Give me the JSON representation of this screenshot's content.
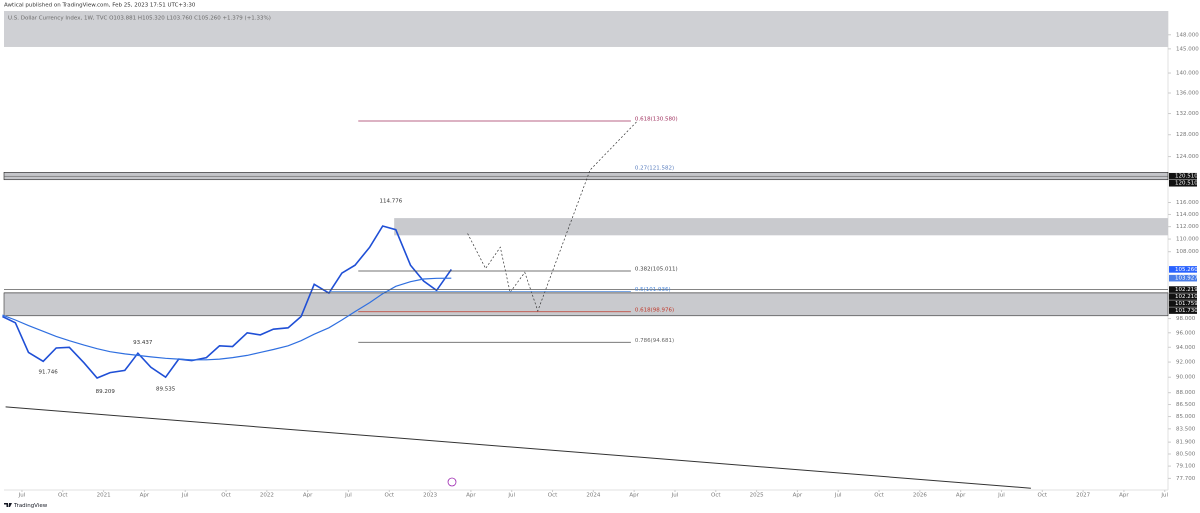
{
  "header": "Awtical published on TradingView.com, Feb 25, 2023 17:51 UTC+3:30",
  "footer": "TradingView",
  "chart_data": {
    "type": "line",
    "legend_text": "U.S. Dollar Currency Index, 1W, TVC O103.881 H105.320 L103.760 C105.260 +1.379 (+1.33%)",
    "log_scale": true,
    "grid": false,
    "xlim": [
      2020.39,
      2027.52
    ],
    "ylim": [
      76.4,
      153.2
    ],
    "xticks": [
      {
        "value": 2020.5,
        "label": "Jul"
      },
      {
        "value": 2020.75,
        "label": "Oct"
      },
      2021,
      {
        "value": 2021.25,
        "label": "Apr"
      },
      {
        "value": 2021.5,
        "label": "Jul"
      },
      {
        "value": 2021.75,
        "label": "Oct"
      },
      2022,
      {
        "value": 2022.25,
        "label": "Apr"
      },
      {
        "value": 2022.5,
        "label": "Jul"
      },
      {
        "value": 2022.75,
        "label": "Oct"
      },
      2023,
      {
        "value": 2023.25,
        "label": "Apr"
      },
      {
        "value": 2023.5,
        "label": "Jul"
      },
      {
        "value": 2023.75,
        "label": "Oct"
      },
      2024,
      {
        "value": 2024.25,
        "label": "Apr"
      },
      {
        "value": 2024.5,
        "label": "Jul"
      },
      {
        "value": 2024.75,
        "label": "Oct"
      },
      2025,
      {
        "value": 2025.25,
        "label": "Apr"
      },
      {
        "value": 2025.5,
        "label": "Jul"
      },
      {
        "value": 2025.75,
        "label": "Oct"
      },
      2026,
      {
        "value": 2026.25,
        "label": "Apr"
      },
      {
        "value": 2026.5,
        "label": "Jul"
      },
      {
        "value": 2026.75,
        "label": "Oct"
      },
      2027,
      {
        "value": 2027.25,
        "label": "Apr"
      },
      {
        "value": 2027.5,
        "label": "Jul"
      }
    ],
    "yticks": [
      {
        "value": 148,
        "label": "148.000"
      },
      {
        "value": 145,
        "label": "145.000"
      },
      {
        "value": 140,
        "label": "140.000"
      },
      {
        "value": 136,
        "label": "136.000"
      },
      {
        "value": 132,
        "label": "132.000"
      },
      {
        "value": 128,
        "label": "128.000"
      },
      {
        "value": 124,
        "label": "124.000"
      },
      {
        "value": 116,
        "label": "116.000"
      },
      {
        "value": 114,
        "label": "114.000"
      },
      {
        "value": 112,
        "label": "112.000"
      },
      {
        "value": 110,
        "label": "110.000"
      },
      {
        "value": 108,
        "label": "108.000"
      },
      {
        "value": 98,
        "label": "98.000"
      },
      {
        "value": 96,
        "label": "96.000"
      },
      {
        "value": 94,
        "label": "94.000"
      },
      {
        "value": 92,
        "label": "92.000"
      },
      {
        "value": 90,
        "label": "90.000"
      },
      {
        "value": 88,
        "label": "88.000"
      },
      {
        "value": 86.5,
        "label": "86.500"
      },
      {
        "value": 85,
        "label": "85.000"
      },
      {
        "value": 83.5,
        "label": "83.500"
      },
      {
        "value": 81.9,
        "label": "81.900"
      },
      {
        "value": 80.5,
        "label": "80.500"
      },
      {
        "value": 79.1,
        "label": "79.100"
      },
      {
        "value": 77.7,
        "label": "77.700"
      }
    ],
    "x": [
      2020.38,
      2020.46,
      2020.54,
      2020.63,
      2020.71,
      2020.79,
      2020.88,
      2020.96,
      2021.04,
      2021.13,
      2021.21,
      2021.29,
      2021.38,
      2021.46,
      2021.54,
      2021.63,
      2021.71,
      2021.79,
      2021.88,
      2021.96,
      2022.04,
      2022.13,
      2022.21,
      2022.29,
      2022.38,
      2022.46,
      2022.54,
      2022.63,
      2022.71,
      2022.79,
      2022.88,
      2022.96,
      2023.04,
      2023.13
    ],
    "series": [
      {
        "color": "#1f4fd6",
        "width": 1.6,
        "values": [
          98.3,
          97.4,
          93.3,
          92.1,
          93.9,
          94.0,
          91.9,
          89.9,
          90.6,
          90.9,
          93.2,
          91.3,
          90.0,
          92.4,
          92.2,
          92.6,
          94.2,
          94.1,
          96.0,
          95.7,
          96.5,
          96.7,
          98.3,
          103.0,
          101.7,
          104.7,
          105.9,
          108.7,
          112.1,
          111.5,
          105.9,
          103.5,
          102.1,
          105.26
        ]
      },
      {
        "color": "#2f6fe0",
        "width": 1.2,
        "values": [
          98.5,
          97.8,
          97.0,
          96.2,
          95.5,
          94.9,
          94.3,
          93.8,
          93.4,
          93.1,
          92.9,
          92.7,
          92.5,
          92.4,
          92.3,
          92.3,
          92.4,
          92.6,
          92.9,
          93.3,
          93.7,
          94.2,
          94.9,
          95.8,
          96.7,
          97.8,
          99.0,
          100.3,
          101.6,
          102.7,
          103.4,
          103.8,
          103.9,
          103.927
        ]
      }
    ],
    "zones": [
      {
        "low": 145.4,
        "high": 153.2,
        "color": "#cfd0d4"
      },
      {
        "low": 119.9,
        "high": 121.2,
        "color": "#c4c5c9",
        "border": "#222222"
      },
      {
        "low": 110.6,
        "high": 113.4,
        "x_start": 2022.78,
        "color": "#c9cace"
      },
      {
        "low": 98.4,
        "high": 101.73,
        "color": "#c9cace",
        "border": "#333333"
      }
    ],
    "fib_x_end": 2024.23,
    "fib_levels": [
      {
        "label": "0.618(130.580)",
        "value": 130.58,
        "x_start": 2022.56,
        "color": "#a0325f"
      },
      {
        "label": "0.27(121.582)",
        "value": 121.582,
        "color": "#5b7fbf"
      },
      {
        "label": "0.382(105.011)",
        "value": 105.011,
        "x_start": 2022.56,
        "color": "#444444"
      },
      {
        "label": "0.5(101.936)",
        "value": 101.936,
        "x_start": 2022.38,
        "color": "#4a86d8"
      },
      {
        "label": "0.618(98.976)",
        "value": 98.976,
        "x_start": 2022.56,
        "color": "#c0392b"
      },
      {
        "label": "0.786(94.681)",
        "value": 94.681,
        "x_start": 2022.56,
        "color": "#666666"
      }
    ],
    "annotations": [
      {
        "x": 2022.76,
        "value": 114.776,
        "position": "above"
      },
      {
        "x": 2020.66,
        "value": 91.746,
        "position": "below"
      },
      {
        "x": 2021.01,
        "value": 89.209,
        "position": "below"
      },
      {
        "x": 2021.24,
        "value": 93.437,
        "position": "above"
      },
      {
        "x": 2021.38,
        "value": 89.535,
        "position": "below"
      }
    ],
    "projection": {
      "color": "#333333",
      "x": [
        2023.23,
        2023.34,
        2023.43,
        2023.49,
        2023.58,
        2023.66,
        2023.98,
        2024.27
      ],
      "values": [
        110.9,
        105.4,
        108.7,
        101.8,
        104.8,
        99.1,
        121.6,
        130.58
      ]
    },
    "trendline": {
      "color": "#333333",
      "x": [
        2020.4,
        2026.68
      ],
      "values": [
        86.2,
        76.6
      ]
    },
    "price_labels": [
      {
        "value": 120.51,
        "label": "120.510",
        "color": "#111111"
      },
      {
        "value": 120.51,
        "label": "120.510",
        "color": "#111111"
      },
      {
        "value": 105.26,
        "label": "105.260",
        "color": "#2962ff"
      },
      {
        "value": 103.927,
        "label": "103.927",
        "color": "#4a7de8"
      },
      {
        "value": 102.219,
        "label": "102.219",
        "color": "#111111"
      },
      {
        "value": 102.21,
        "label": "102.210",
        "color": "#111111"
      },
      {
        "value": 101.759,
        "label": "101.759",
        "color": "#111111"
      },
      {
        "value": 101.73,
        "label": "101.730",
        "color": "#111111"
      }
    ]
  }
}
